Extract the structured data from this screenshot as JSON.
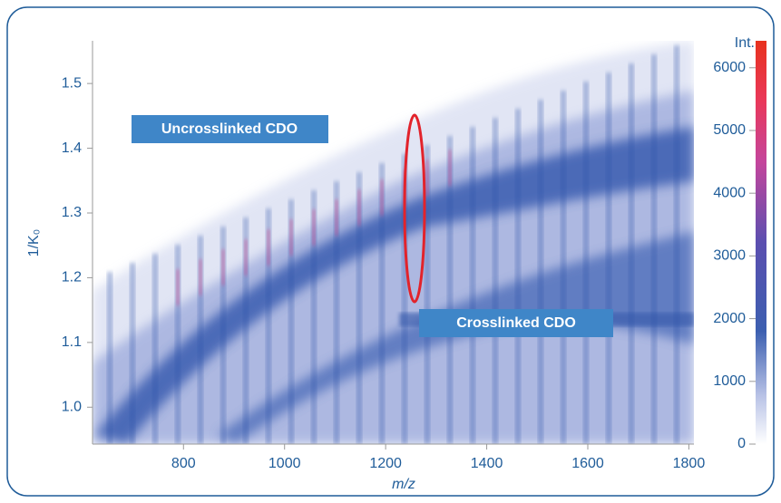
{
  "chart_data": {
    "type": "heatmap",
    "x_label": "m/z",
    "y_label": "1/K₀",
    "colorbar_label": "Int.",
    "xlim": [
      620,
      1810
    ],
    "xticks": [
      800,
      1000,
      1200,
      1400,
      1600,
      1800
    ],
    "ylim": [
      0.943,
      1.566
    ],
    "yticks": [
      {
        "value": 1,
        "label": "1.0"
      },
      1.1,
      1.2,
      1.3,
      1.4,
      1.5
    ],
    "clim": [
      0,
      6430
    ],
    "cticks": [
      0,
      1000,
      2000,
      3000,
      4000,
      5000,
      6000
    ],
    "annotations": [
      "Uncrosslinked CDO",
      "Crosslinked CDO"
    ]
  }
}
